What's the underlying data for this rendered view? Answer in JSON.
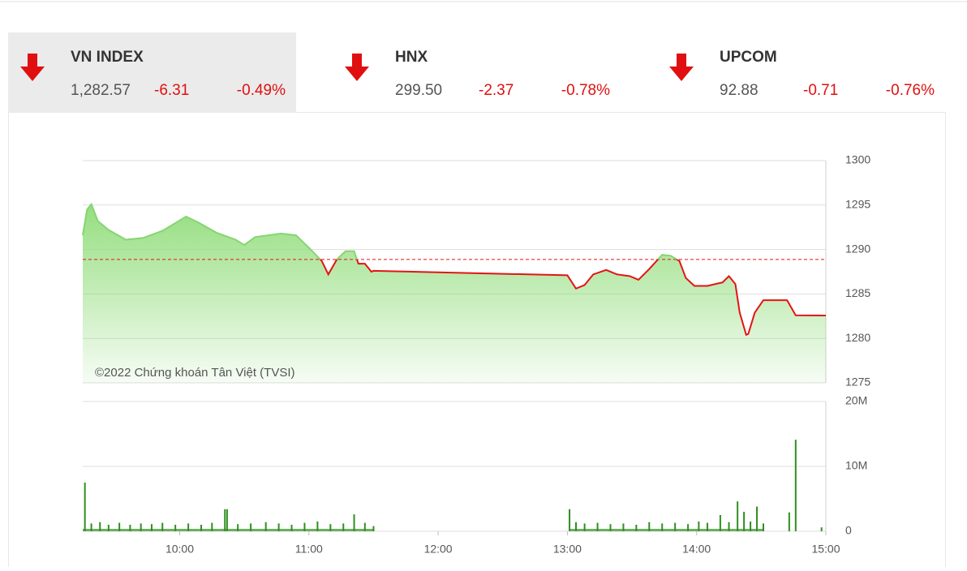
{
  "indices": [
    {
      "name": "VN INDEX",
      "value": "1,282.57",
      "change": "-6.31",
      "percent": "-0.49%"
    },
    {
      "name": "HNX",
      "value": "299.50",
      "change": "-2.37",
      "percent": "-0.78%"
    },
    {
      "name": "UPCOM",
      "value": "92.88",
      "change": "-0.71",
      "percent": "-0.76%"
    }
  ],
  "chart_data": [
    {
      "type": "area",
      "annotation": "©2022 Chứng khoán Tân Việt (TVSI)",
      "x": [
        555,
        557,
        559,
        562,
        567,
        575,
        583,
        592,
        603,
        609,
        617,
        626,
        630,
        635,
        647,
        654,
        660,
        666,
        669,
        673,
        677,
        681,
        683,
        686,
        689,
        690,
        780,
        784,
        788,
        792,
        798,
        803,
        809,
        813,
        818,
        824,
        828,
        832,
        835,
        839,
        845,
        852,
        855,
        858,
        860,
        863,
        864,
        867,
        871,
        882,
        886,
        900
      ],
      "values": [
        1291.6,
        1294.5,
        1295.1,
        1293.2,
        1292.2,
        1291.1,
        1291.3,
        1292.1,
        1293.7,
        1293.0,
        1291.9,
        1291.1,
        1290.5,
        1291.4,
        1291.8,
        1291.6,
        1290.2,
        1288.7,
        1287.2,
        1288.9,
        1289.8,
        1289.8,
        1288.4,
        1288.4,
        1287.5,
        1287.6,
        1287.1,
        1285.6,
        1286.0,
        1287.2,
        1287.7,
        1287.2,
        1287.0,
        1286.6,
        1287.8,
        1289.4,
        1289.3,
        1288.7,
        1286.8,
        1285.9,
        1285.9,
        1286.3,
        1287.0,
        1286.1,
        1282.9,
        1280.4,
        1280.5,
        1282.9,
        1284.3,
        1284.3,
        1282.6,
        1282.57
      ],
      "reference": 1288.88,
      "color": "#e31414",
      "up_color": "#86d572",
      "area_color": "#9be28a",
      "xlim": [
        555,
        900
      ],
      "ylim": [
        1275,
        1300
      ],
      "yticks": [
        1275,
        1280,
        1285,
        1290,
        1295,
        1300
      ],
      "grid": true
    },
    {
      "type": "bar",
      "x": [
        556,
        559,
        563,
        567,
        572,
        577,
        582,
        587,
        592,
        598,
        604,
        610,
        615,
        621,
        622,
        627,
        633,
        640,
        646,
        652,
        658,
        664,
        670,
        676,
        681,
        686,
        690,
        781,
        784,
        788,
        794,
        800,
        806,
        812,
        818,
        824,
        830,
        836,
        841,
        845,
        851,
        855,
        859,
        862,
        865,
        868,
        871,
        883,
        886,
        898
      ],
      "values": [
        7.5,
        1.2,
        1.4,
        1.0,
        1.3,
        1.0,
        1.2,
        1.1,
        1.3,
        1.0,
        1.2,
        1.0,
        1.3,
        3.4,
        3.4,
        1.1,
        1.2,
        1.4,
        1.2,
        1.0,
        1.3,
        1.5,
        1.1,
        1.2,
        2.6,
        1.3,
        0.8,
        3.4,
        1.4,
        1.2,
        1.3,
        1.1,
        1.2,
        1.0,
        1.4,
        1.2,
        1.3,
        1.1,
        1.5,
        1.3,
        2.5,
        1.4,
        4.6,
        3.0,
        1.5,
        3.8,
        1.2,
        2.9,
        14.1,
        0.6
      ],
      "color": "#2f8f1f",
      "xlim": [
        555,
        900
      ],
      "ylim": [
        0,
        20
      ],
      "yticks": [
        0,
        {
          "value": 10,
          "label": "10M"
        },
        {
          "value": 20,
          "label": "20M"
        }
      ],
      "xticks": [
        {
          "value": 600,
          "label": "10:00"
        },
        {
          "value": 660,
          "label": "11:00"
        },
        {
          "value": 720,
          "label": "12:00"
        },
        {
          "value": 780,
          "label": "13:00"
        },
        {
          "value": 840,
          "label": "14:00"
        },
        {
          "value": 900,
          "label": "15:00"
        }
      ],
      "grid": true
    }
  ]
}
